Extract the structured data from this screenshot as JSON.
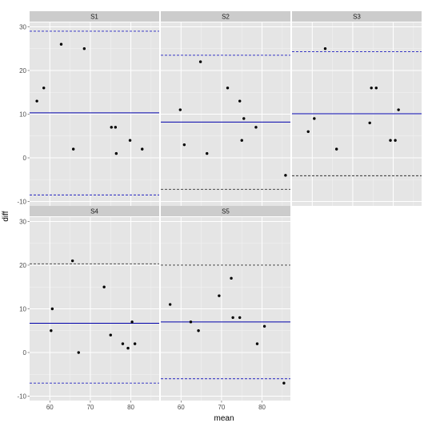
{
  "chart_data": {
    "type": "scatter",
    "xlabel": "mean",
    "ylabel": "diff",
    "xlim": [
      55,
      87
    ],
    "ylim": [
      -11,
      31
    ],
    "x_ticks": [
      60,
      70,
      80
    ],
    "y_ticks": [
      -10,
      0,
      10,
      20,
      30
    ],
    "grid": true,
    "colors": {
      "panel_bg": "#e5e5e5",
      "grid_major": "#ffffff",
      "grid_minor": "#f2f2f2",
      "strip_bg": "#cccccc",
      "mean_line": "#0000aa",
      "point": "#000000"
    },
    "panels": [
      {
        "name": "S1",
        "mean_diff": 10.3,
        "upper_limit": 29.0,
        "lower_limit": -8.5,
        "upper_line_color": "#2020c0",
        "lower_line_color": "#2020c0",
        "points": [
          {
            "x": 56.8,
            "y": 13
          },
          {
            "x": 58.5,
            "y": 16
          },
          {
            "x": 62.8,
            "y": 26
          },
          {
            "x": 65.8,
            "y": 2
          },
          {
            "x": 68.5,
            "y": 25
          },
          {
            "x": 75.2,
            "y": 7
          },
          {
            "x": 76.2,
            "y": 7
          },
          {
            "x": 76.4,
            "y": 1
          },
          {
            "x": 79.8,
            "y": 4
          },
          {
            "x": 82.8,
            "y": 2
          }
        ]
      },
      {
        "name": "S2",
        "mean_diff": 8.2,
        "upper_limit": 23.5,
        "lower_limit": -7.2,
        "upper_line_color": "#2020c0",
        "lower_line_color": "#333333",
        "points": [
          {
            "x": 59.8,
            "y": 11
          },
          {
            "x": 60.8,
            "y": 3
          },
          {
            "x": 64.8,
            "y": 22
          },
          {
            "x": 66.4,
            "y": 1
          },
          {
            "x": 71.5,
            "y": 16
          },
          {
            "x": 74.5,
            "y": 13
          },
          {
            "x": 75.0,
            "y": 4
          },
          {
            "x": 75.5,
            "y": 9
          },
          {
            "x": 78.5,
            "y": 7
          },
          {
            "x": 85.8,
            "y": -4
          }
        ]
      },
      {
        "name": "S3",
        "mean_diff": 10.1,
        "upper_limit": 24.3,
        "lower_limit": -4.1,
        "upper_line_color": "#2020c0",
        "lower_line_color": "#333333",
        "points": [
          {
            "x": 59.0,
            "y": 6
          },
          {
            "x": 60.5,
            "y": 9
          },
          {
            "x": 63.2,
            "y": 25
          },
          {
            "x": 66.0,
            "y": 2
          },
          {
            "x": 74.2,
            "y": 8
          },
          {
            "x": 74.6,
            "y": 16
          },
          {
            "x": 75.8,
            "y": 16
          },
          {
            "x": 79.3,
            "y": 4
          },
          {
            "x": 80.5,
            "y": 4
          },
          {
            "x": 81.3,
            "y": 11
          }
        ]
      },
      {
        "name": "S4",
        "mean_diff": 6.7,
        "upper_limit": 20.3,
        "lower_limit": -7.0,
        "upper_line_color": "#333333",
        "lower_line_color": "#2020c0",
        "points": [
          {
            "x": 60.3,
            "y": 5
          },
          {
            "x": 60.6,
            "y": 10
          },
          {
            "x": 65.6,
            "y": 21
          },
          {
            "x": 67.1,
            "y": 0
          },
          {
            "x": 73.4,
            "y": 15
          },
          {
            "x": 75.0,
            "y": 4
          },
          {
            "x": 78.0,
            "y": 2
          },
          {
            "x": 79.3,
            "y": 1
          },
          {
            "x": 80.3,
            "y": 7
          },
          {
            "x": 81.0,
            "y": 2
          }
        ]
      },
      {
        "name": "S5",
        "mean_diff": 7.0,
        "upper_limit": 20.0,
        "lower_limit": -6.0,
        "upper_line_color": "#333333",
        "lower_line_color": "#2020c0",
        "points": [
          {
            "x": 57.3,
            "y": 11
          },
          {
            "x": 62.4,
            "y": 7
          },
          {
            "x": 64.3,
            "y": 5
          },
          {
            "x": 69.4,
            "y": 13
          },
          {
            "x": 72.4,
            "y": 17
          },
          {
            "x": 72.8,
            "y": 8
          },
          {
            "x": 74.5,
            "y": 8
          },
          {
            "x": 78.8,
            "y": 2
          },
          {
            "x": 80.6,
            "y": 6
          },
          {
            "x": 85.4,
            "y": -7
          }
        ]
      }
    ]
  }
}
